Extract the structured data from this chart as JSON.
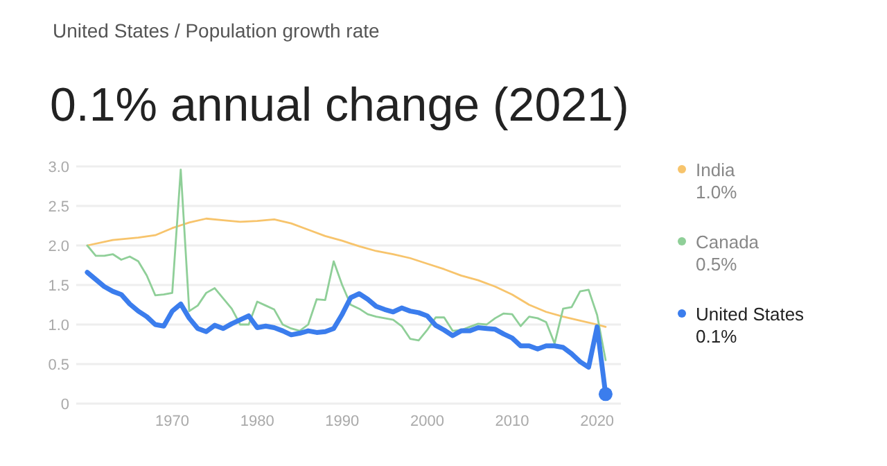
{
  "chart_data": {
    "type": "line",
    "subtitle": "United States / Population growth rate",
    "title": "0.1% annual change (2021)",
    "x": [
      1960,
      1961,
      1962,
      1963,
      1964,
      1965,
      1966,
      1967,
      1968,
      1969,
      1970,
      1971,
      1972,
      1973,
      1974,
      1975,
      1976,
      1977,
      1978,
      1979,
      1980,
      1981,
      1982,
      1983,
      1984,
      1985,
      1986,
      1987,
      1988,
      1989,
      1990,
      1991,
      1992,
      1993,
      1994,
      1995,
      1996,
      1997,
      1998,
      1999,
      2000,
      2001,
      2002,
      2003,
      2004,
      2005,
      2006,
      2007,
      2008,
      2009,
      2010,
      2011,
      2012,
      2013,
      2014,
      2015,
      2016,
      2017,
      2018,
      2019,
      2020,
      2021
    ],
    "series": [
      {
        "name": "India",
        "color": "#f7c46c",
        "x": [
          1960,
          1963,
          1966,
          1968,
          1970,
          1972,
          1974,
          1976,
          1978,
          1980,
          1982,
          1984,
          1986,
          1988,
          1990,
          1992,
          1994,
          1996,
          1998,
          2000,
          2002,
          2004,
          2006,
          2008,
          2010,
          2012,
          2014,
          2016,
          2018,
          2020,
          2021
        ],
        "values": [
          2.0,
          2.07,
          2.1,
          2.13,
          2.22,
          2.29,
          2.34,
          2.32,
          2.3,
          2.31,
          2.33,
          2.28,
          2.2,
          2.12,
          2.06,
          1.99,
          1.93,
          1.89,
          1.84,
          1.77,
          1.7,
          1.62,
          1.56,
          1.48,
          1.38,
          1.25,
          1.16,
          1.1,
          1.05,
          1.0,
          0.97
        ]
      },
      {
        "name": "Canada",
        "color": "#8fcf98",
        "values": [
          2.0,
          1.87,
          1.87,
          1.89,
          1.82,
          1.86,
          1.8,
          1.62,
          1.37,
          1.38,
          1.4,
          2.96,
          1.17,
          1.24,
          1.4,
          1.46,
          1.33,
          1.2,
          1.0,
          1.0,
          1.29,
          1.24,
          1.19,
          1.0,
          0.95,
          0.92,
          1.0,
          1.32,
          1.31,
          1.8,
          1.5,
          1.25,
          1.2,
          1.13,
          1.1,
          1.08,
          1.06,
          0.98,
          0.82,
          0.8,
          0.93,
          1.09,
          1.09,
          0.92,
          0.93,
          0.97,
          1.01,
          1.0,
          1.08,
          1.14,
          1.13,
          0.98,
          1.1,
          1.08,
          1.03,
          0.76,
          1.2,
          1.22,
          1.42,
          1.44,
          1.12,
          0.55
        ]
      },
      {
        "name": "United States",
        "color": "#3b7ded",
        "values": [
          1.66,
          1.57,
          1.48,
          1.42,
          1.38,
          1.26,
          1.17,
          1.1,
          1.0,
          0.98,
          1.17,
          1.26,
          1.08,
          0.95,
          0.91,
          0.99,
          0.95,
          1.01,
          1.06,
          1.11,
          0.96,
          0.98,
          0.96,
          0.92,
          0.87,
          0.89,
          0.92,
          0.9,
          0.91,
          0.95,
          1.13,
          1.34,
          1.39,
          1.32,
          1.23,
          1.19,
          1.16,
          1.21,
          1.17,
          1.15,
          1.11,
          0.99,
          0.93,
          0.86,
          0.92,
          0.92,
          0.96,
          0.95,
          0.94,
          0.88,
          0.83,
          0.73,
          0.73,
          0.69,
          0.73,
          0.73,
          0.71,
          0.63,
          0.53,
          0.46,
          0.97,
          0.12
        ]
      }
    ],
    "annotations": [
      "1.0%",
      "0.5%",
      "0.1%"
    ],
    "xlim": [
      1958.7,
      2022.8
    ],
    "xticks": [
      1970,
      1980,
      1990,
      2000,
      2010,
      2020
    ],
    "ylim": [
      0,
      3.0
    ],
    "yticks": [
      0,
      {
        "value": 0.5,
        "label": "0.5"
      },
      {
        "value": 1,
        "label": "1.0"
      },
      {
        "value": 1.5,
        "label": "1.5"
      },
      {
        "value": 2,
        "label": "2.0"
      },
      {
        "value": 2.5,
        "label": "2.5"
      },
      {
        "value": 3,
        "label": "3.0"
      }
    ],
    "grid": "y",
    "legend": "right"
  }
}
